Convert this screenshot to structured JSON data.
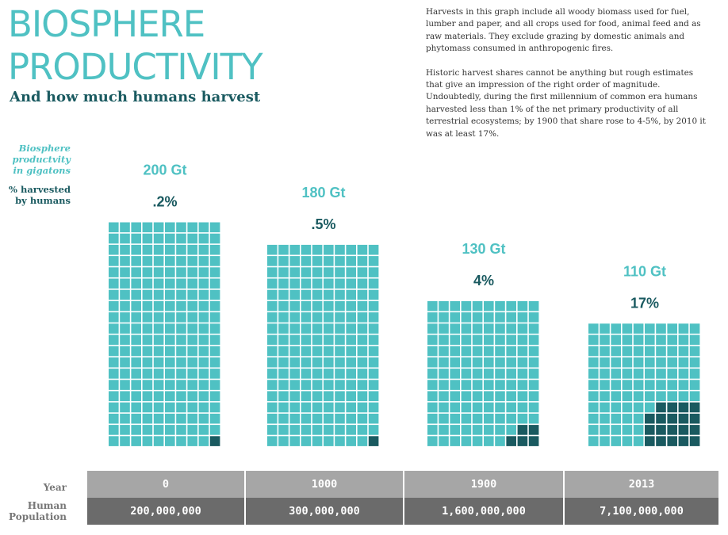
{
  "title_line1": "BIOSPHERE",
  "title_line2": "PRODUCTIVITY",
  "subtitle": "And how much humans harvest",
  "notes": {
    "p1": "Harvests in this graph include all woody biomass used for fuel, lumber and paper, and all crops used for food, animal feed and as raw materials. They exclude grazing by domestic animals and phytomass consumed in anthropogenic fires.",
    "p2": "Historic harvest shares cannot be anything but rough estimates that give an impression of the right order of magnitude. Undoubtedly, during the first millennium of common era humans harvested less than 1% of the net primary productivity of all terrestrial ecosystems; by 1900 that share rose to 4-5%, by 2010 it was at least 17%."
  },
  "legend": {
    "productivity_line1": "Biosphere",
    "productivity_line2": "productvity",
    "productivity_line3": "in gigatons",
    "harvest_line1": "% harvested",
    "harvest_line2": "by humans"
  },
  "table": {
    "year_label": "Year",
    "population_label_line1": "Human",
    "population_label_line2": "Population"
  },
  "colors": {
    "biomass": "#4fc1c3",
    "harvested": "#1a5a60",
    "year_row": "#a6a6a6",
    "population_row": "#6b6b6b"
  },
  "chart_data": {
    "type": "waffle",
    "unit_squares": "each square = 1 Gt of net primary productivity",
    "categories": [
      "0",
      "1000",
      "1900",
      "2013"
    ],
    "series": [
      {
        "name": "Biosphere productivity (Gt)",
        "values": [
          200,
          180,
          130,
          110
        ],
        "labels": [
          "200 Gt",
          "180 Gt",
          "130 Gt",
          "110 Gt"
        ]
      },
      {
        "name": "% harvested by humans",
        "values": [
          0.2,
          0.5,
          4,
          17
        ],
        "labels": [
          ".2%",
          ".5%",
          "4%",
          "17%"
        ]
      },
      {
        "name": "Human population",
        "values": [
          200000000,
          300000000,
          1600000000,
          7100000000
        ],
        "labels": [
          "200,000,000",
          "300,000,000",
          "1,600,000,000",
          "7,100,000,000"
        ]
      }
    ]
  }
}
